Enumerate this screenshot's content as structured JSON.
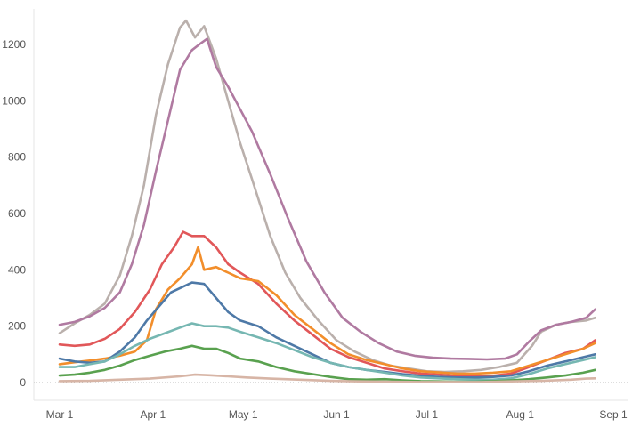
{
  "chart_data": {
    "type": "line",
    "title": "",
    "xlabel": "",
    "ylabel": "",
    "x_range": [
      "Mar 1",
      "Sep 1"
    ],
    "ylim": [
      0,
      1300
    ],
    "grid": false,
    "legend": "none",
    "x_ticks": [
      {
        "label": "Mar 1",
        "day": 0
      },
      {
        "label": "Apr 1",
        "day": 31
      },
      {
        "label": "May 1",
        "day": 61
      },
      {
        "label": "Jun 1",
        "day": 92
      },
      {
        "label": "Jul 1",
        "day": 122
      },
      {
        "label": "Aug 1",
        "day": 153
      },
      {
        "label": "Sep 1",
        "day": 184
      }
    ],
    "y_ticks": [
      0,
      200,
      400,
      600,
      800,
      1000,
      1200
    ],
    "series": [
      {
        "color": "#bab0ac",
        "points": [
          [
            0,
            175
          ],
          [
            5,
            210
          ],
          [
            10,
            240
          ],
          [
            15,
            280
          ],
          [
            20,
            380
          ],
          [
            24,
            520
          ],
          [
            28,
            700
          ],
          [
            32,
            950
          ],
          [
            36,
            1130
          ],
          [
            40,
            1260
          ],
          [
            42,
            1285
          ],
          [
            45,
            1225
          ],
          [
            48,
            1265
          ],
          [
            52,
            1150
          ],
          [
            56,
            1000
          ],
          [
            60,
            850
          ],
          [
            64,
            720
          ],
          [
            70,
            520
          ],
          [
            75,
            390
          ],
          [
            80,
            300
          ],
          [
            86,
            220
          ],
          [
            92,
            150
          ],
          [
            98,
            110
          ],
          [
            104,
            80
          ],
          [
            110,
            60
          ],
          [
            116,
            50
          ],
          [
            122,
            40
          ],
          [
            128,
            38
          ],
          [
            134,
            40
          ],
          [
            140,
            45
          ],
          [
            146,
            55
          ],
          [
            152,
            70
          ],
          [
            157,
            130
          ],
          [
            160,
            180
          ],
          [
            165,
            205
          ],
          [
            170,
            215
          ],
          [
            175,
            220
          ],
          [
            178,
            230
          ]
        ]
      },
      {
        "color": "#b07aa1",
        "points": [
          [
            0,
            205
          ],
          [
            5,
            215
          ],
          [
            10,
            235
          ],
          [
            15,
            265
          ],
          [
            20,
            320
          ],
          [
            24,
            420
          ],
          [
            28,
            560
          ],
          [
            32,
            750
          ],
          [
            36,
            930
          ],
          [
            40,
            1110
          ],
          [
            44,
            1180
          ],
          [
            47,
            1205
          ],
          [
            49,
            1220
          ],
          [
            52,
            1120
          ],
          [
            56,
            1050
          ],
          [
            60,
            970
          ],
          [
            64,
            890
          ],
          [
            70,
            740
          ],
          [
            76,
            580
          ],
          [
            82,
            430
          ],
          [
            88,
            320
          ],
          [
            94,
            230
          ],
          [
            100,
            180
          ],
          [
            106,
            140
          ],
          [
            112,
            110
          ],
          [
            118,
            95
          ],
          [
            124,
            88
          ],
          [
            130,
            85
          ],
          [
            136,
            84
          ],
          [
            142,
            82
          ],
          [
            148,
            85
          ],
          [
            152,
            100
          ],
          [
            156,
            145
          ],
          [
            160,
            185
          ],
          [
            165,
            205
          ],
          [
            170,
            215
          ],
          [
            175,
            230
          ],
          [
            178,
            260
          ]
        ]
      },
      {
        "color": "#e15759",
        "points": [
          [
            0,
            135
          ],
          [
            5,
            130
          ],
          [
            10,
            135
          ],
          [
            15,
            155
          ],
          [
            20,
            190
          ],
          [
            25,
            250
          ],
          [
            30,
            330
          ],
          [
            34,
            420
          ],
          [
            38,
            480
          ],
          [
            41,
            535
          ],
          [
            44,
            520
          ],
          [
            48,
            520
          ],
          [
            52,
            480
          ],
          [
            56,
            420
          ],
          [
            60,
            390
          ],
          [
            66,
            350
          ],
          [
            72,
            280
          ],
          [
            78,
            220
          ],
          [
            84,
            170
          ],
          [
            90,
            120
          ],
          [
            96,
            90
          ],
          [
            102,
            70
          ],
          [
            108,
            50
          ],
          [
            114,
            40
          ],
          [
            120,
            32
          ],
          [
            126,
            28
          ],
          [
            132,
            24
          ],
          [
            138,
            22
          ],
          [
            144,
            24
          ],
          [
            150,
            32
          ],
          [
            156,
            55
          ],
          [
            162,
            80
          ],
          [
            168,
            105
          ],
          [
            174,
            120
          ],
          [
            178,
            150
          ]
        ]
      },
      {
        "color": "#f28e2b",
        "points": [
          [
            0,
            65
          ],
          [
            5,
            72
          ],
          [
            10,
            78
          ],
          [
            15,
            85
          ],
          [
            20,
            95
          ],
          [
            25,
            110
          ],
          [
            29,
            150
          ],
          [
            32,
            260
          ],
          [
            36,
            330
          ],
          [
            40,
            370
          ],
          [
            44,
            420
          ],
          [
            46,
            480
          ],
          [
            48,
            400
          ],
          [
            52,
            410
          ],
          [
            56,
            390
          ],
          [
            60,
            370
          ],
          [
            66,
            360
          ],
          [
            72,
            310
          ],
          [
            78,
            240
          ],
          [
            84,
            190
          ],
          [
            90,
            140
          ],
          [
            96,
            100
          ],
          [
            102,
            80
          ],
          [
            108,
            65
          ],
          [
            114,
            50
          ],
          [
            120,
            40
          ],
          [
            126,
            36
          ],
          [
            132,
            32
          ],
          [
            138,
            32
          ],
          [
            144,
            35
          ],
          [
            150,
            40
          ],
          [
            156,
            60
          ],
          [
            162,
            80
          ],
          [
            168,
            100
          ],
          [
            174,
            120
          ],
          [
            178,
            140
          ]
        ]
      },
      {
        "color": "#4e79a7",
        "points": [
          [
            0,
            85
          ],
          [
            5,
            75
          ],
          [
            10,
            70
          ],
          [
            15,
            75
          ],
          [
            20,
            110
          ],
          [
            25,
            160
          ],
          [
            29,
            220
          ],
          [
            33,
            270
          ],
          [
            37,
            320
          ],
          [
            41,
            340
          ],
          [
            44,
            355
          ],
          [
            48,
            350
          ],
          [
            52,
            300
          ],
          [
            56,
            250
          ],
          [
            60,
            220
          ],
          [
            66,
            200
          ],
          [
            72,
            160
          ],
          [
            78,
            130
          ],
          [
            84,
            100
          ],
          [
            90,
            70
          ],
          [
            96,
            55
          ],
          [
            102,
            45
          ],
          [
            108,
            38
          ],
          [
            114,
            30
          ],
          [
            120,
            24
          ],
          [
            126,
            20
          ],
          [
            132,
            18
          ],
          [
            138,
            18
          ],
          [
            144,
            20
          ],
          [
            150,
            25
          ],
          [
            156,
            40
          ],
          [
            162,
            60
          ],
          [
            168,
            75
          ],
          [
            174,
            90
          ],
          [
            178,
            100
          ]
        ]
      },
      {
        "color": "#76b7b2",
        "points": [
          [
            0,
            55
          ],
          [
            5,
            55
          ],
          [
            10,
            65
          ],
          [
            15,
            75
          ],
          [
            20,
            100
          ],
          [
            25,
            130
          ],
          [
            30,
            155
          ],
          [
            35,
            175
          ],
          [
            40,
            195
          ],
          [
            44,
            210
          ],
          [
            48,
            200
          ],
          [
            52,
            200
          ],
          [
            56,
            195
          ],
          [
            60,
            180
          ],
          [
            66,
            160
          ],
          [
            72,
            140
          ],
          [
            78,
            115
          ],
          [
            84,
            90
          ],
          [
            90,
            70
          ],
          [
            96,
            55
          ],
          [
            102,
            45
          ],
          [
            108,
            35
          ],
          [
            114,
            25
          ],
          [
            120,
            18
          ],
          [
            126,
            15
          ],
          [
            132,
            12
          ],
          [
            138,
            10
          ],
          [
            144,
            10
          ],
          [
            150,
            15
          ],
          [
            156,
            30
          ],
          [
            162,
            50
          ],
          [
            168,
            65
          ],
          [
            174,
            80
          ],
          [
            178,
            90
          ]
        ]
      },
      {
        "color": "#59a14f",
        "points": [
          [
            0,
            25
          ],
          [
            5,
            28
          ],
          [
            10,
            35
          ],
          [
            15,
            45
          ],
          [
            20,
            60
          ],
          [
            25,
            80
          ],
          [
            30,
            95
          ],
          [
            35,
            110
          ],
          [
            40,
            120
          ],
          [
            44,
            130
          ],
          [
            48,
            120
          ],
          [
            52,
            120
          ],
          [
            56,
            105
          ],
          [
            60,
            85
          ],
          [
            66,
            75
          ],
          [
            72,
            55
          ],
          [
            78,
            40
          ],
          [
            84,
            30
          ],
          [
            90,
            20
          ],
          [
            96,
            12
          ],
          [
            102,
            10
          ],
          [
            108,
            12
          ],
          [
            114,
            8
          ],
          [
            120,
            5
          ],
          [
            126,
            4
          ],
          [
            132,
            3
          ],
          [
            138,
            3
          ],
          [
            144,
            5
          ],
          [
            150,
            8
          ],
          [
            156,
            12
          ],
          [
            162,
            18
          ],
          [
            168,
            25
          ],
          [
            174,
            35
          ],
          [
            178,
            45
          ]
        ]
      },
      {
        "color": "#d7b5a6",
        "points": [
          [
            0,
            5
          ],
          [
            10,
            6
          ],
          [
            20,
            10
          ],
          [
            30,
            14
          ],
          [
            40,
            22
          ],
          [
            45,
            28
          ],
          [
            50,
            26
          ],
          [
            56,
            22
          ],
          [
            62,
            18
          ],
          [
            70,
            14
          ],
          [
            80,
            10
          ],
          [
            90,
            6
          ],
          [
            100,
            4
          ],
          [
            110,
            3
          ],
          [
            120,
            2
          ],
          [
            130,
            2
          ],
          [
            140,
            2
          ],
          [
            150,
            4
          ],
          [
            160,
            6
          ],
          [
            170,
            10
          ],
          [
            175,
            14
          ],
          [
            178,
            15
          ]
        ]
      }
    ]
  }
}
